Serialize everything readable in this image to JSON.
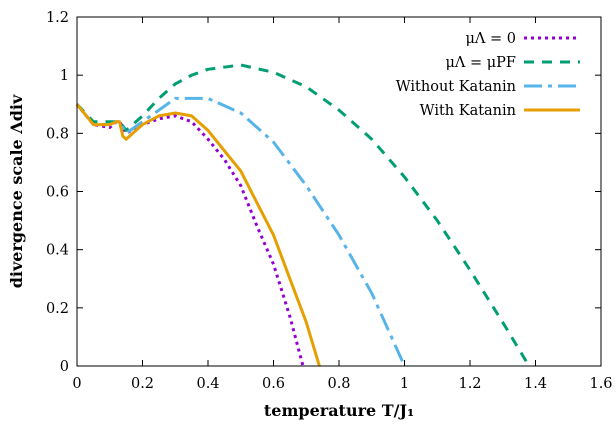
{
  "chart_data": {
    "type": "line",
    "xlabel": "temperature T/J₁",
    "ylabel": "divergence scale Λdiv",
    "xlim": [
      0,
      1.6
    ],
    "ylim": [
      0,
      1.2
    ],
    "xticks": [
      "0",
      "0.2",
      "0.4",
      "0.6",
      "0.8",
      "1",
      "1.2",
      "1.4",
      "1.6"
    ],
    "yticks": [
      "0",
      "0.2",
      "0.4",
      "0.6",
      "0.8",
      "1",
      "1.2"
    ],
    "grid": false,
    "legend_position": "top-right",
    "series": [
      {
        "name": "μΛ = 0",
        "color": "#9400D3",
        "dash": "dotted",
        "x": [
          0,
          0.05,
          0.1,
          0.12,
          0.13,
          0.15,
          0.2,
          0.25,
          0.3,
          0.35,
          0.4,
          0.45,
          0.5,
          0.55,
          0.6,
          0.65,
          0.69
        ],
        "y": [
          0.9,
          0.83,
          0.82,
          0.84,
          0.84,
          0.8,
          0.83,
          0.85,
          0.86,
          0.84,
          0.78,
          0.71,
          0.62,
          0.48,
          0.35,
          0.17,
          0.0
        ]
      },
      {
        "name": "μΛ = μPF",
        "color": "#009E73",
        "dash": "dashed",
        "x": [
          0,
          0.05,
          0.1,
          0.12,
          0.13,
          0.15,
          0.2,
          0.25,
          0.3,
          0.35,
          0.4,
          0.5,
          0.6,
          0.7,
          0.8,
          0.9,
          1.0,
          1.1,
          1.2,
          1.3,
          1.38
        ],
        "y": [
          0.9,
          0.84,
          0.84,
          0.84,
          0.84,
          0.81,
          0.86,
          0.92,
          0.97,
          1.0,
          1.02,
          1.035,
          1.01,
          0.96,
          0.88,
          0.78,
          0.65,
          0.5,
          0.33,
          0.15,
          0.0
        ]
      },
      {
        "name": "Without Katanin",
        "color": "#56B4E9",
        "dash": "dashdot",
        "x": [
          0,
          0.05,
          0.1,
          0.12,
          0.13,
          0.15,
          0.2,
          0.25,
          0.3,
          0.35,
          0.4,
          0.5,
          0.6,
          0.7,
          0.8,
          0.9,
          1.0
        ],
        "y": [
          0.9,
          0.83,
          0.83,
          0.84,
          0.84,
          0.8,
          0.84,
          0.88,
          0.92,
          0.92,
          0.92,
          0.87,
          0.77,
          0.62,
          0.45,
          0.25,
          0.0
        ]
      },
      {
        "name": "With Katanin",
        "color": "#E69F00",
        "dash": "solid",
        "x": [
          0,
          0.05,
          0.1,
          0.12,
          0.13,
          0.14,
          0.15,
          0.2,
          0.25,
          0.3,
          0.35,
          0.4,
          0.45,
          0.5,
          0.55,
          0.6,
          0.65,
          0.7,
          0.74
        ],
        "y": [
          0.9,
          0.83,
          0.83,
          0.84,
          0.84,
          0.79,
          0.78,
          0.83,
          0.86,
          0.87,
          0.86,
          0.81,
          0.74,
          0.67,
          0.56,
          0.45,
          0.3,
          0.15,
          0.0
        ]
      }
    ]
  }
}
